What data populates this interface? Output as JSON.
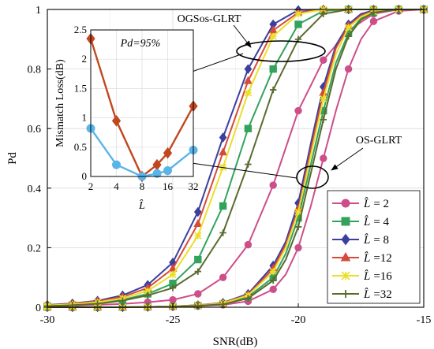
{
  "chart_data": {
    "type": "line",
    "xlabel": "SNR(dB)",
    "ylabel": "Pd",
    "xlim": [
      -30,
      -15
    ],
    "ylim": [
      0,
      1
    ],
    "xticks": [
      -30,
      -25,
      -20,
      -15
    ],
    "yticks": [
      0,
      0.2,
      0.4,
      0.6,
      0.8,
      1
    ],
    "xtick_labels": [
      "-30",
      "-25",
      "-20",
      "-15"
    ],
    "ytick_labels": [
      "0",
      "0.2",
      "0.4",
      "0.6",
      "0.8",
      "1"
    ],
    "grid": true,
    "legend_position": "bottom-right",
    "series": [
      {
        "name": "L̂ = 2",
        "label_var": "L̂",
        "label_val": "= 2",
        "color": "#cc4f8a",
        "marker": "circle",
        "ogs_x": [
          -30,
          -29,
          -28,
          -27,
          -26,
          -25,
          -24,
          -23,
          -22,
          -21,
          -20,
          -19,
          -18,
          -17,
          -16,
          -15
        ],
        "ogs_y": [
          0.003,
          0.005,
          0.008,
          0.011,
          0.017,
          0.025,
          0.045,
          0.1,
          0.21,
          0.41,
          0.66,
          0.83,
          0.93,
          0.985,
          1,
          1
        ],
        "os_x": [
          -30,
          -29,
          -28,
          -27,
          -26,
          -25,
          -24,
          -23,
          -22,
          -21,
          -20.5,
          -20,
          -19.5,
          -19,
          -18.5,
          -18,
          -17.5,
          -17,
          -16,
          -15
        ],
        "os_y": [
          0,
          0,
          0,
          0,
          0.001,
          0.002,
          0.004,
          0.008,
          0.02,
          0.06,
          0.11,
          0.2,
          0.34,
          0.5,
          0.66,
          0.8,
          0.9,
          0.96,
          0.995,
          1
        ]
      },
      {
        "name": "L̂ = 4",
        "label_var": "L̂",
        "label_val": "= 4",
        "color": "#33a35c",
        "marker": "square",
        "ogs_x": [
          -30,
          -29,
          -28,
          -27,
          -26,
          -25,
          -24,
          -23,
          -22,
          -21,
          -20,
          -19,
          -18,
          -17,
          -16,
          -15
        ],
        "ogs_y": [
          0.005,
          0.008,
          0.014,
          0.025,
          0.045,
          0.08,
          0.16,
          0.34,
          0.6,
          0.8,
          0.95,
          0.995,
          1,
          1,
          1,
          1
        ],
        "os_x": [
          -30,
          -29,
          -28,
          -27,
          -26,
          -25,
          -24,
          -23,
          -22,
          -21,
          -20.5,
          -20,
          -19.5,
          -19,
          -18.5,
          -18,
          -17.5,
          -17,
          -16,
          -15
        ],
        "os_y": [
          0,
          0,
          0,
          0,
          0.001,
          0.003,
          0.006,
          0.012,
          0.035,
          0.1,
          0.18,
          0.3,
          0.48,
          0.66,
          0.82,
          0.92,
          0.97,
          0.99,
          1,
          1
        ]
      },
      {
        "name": "L̂ = 8",
        "label_var": "L̂",
        "label_val": "= 8",
        "color": "#3a3fa0",
        "marker": "diamond",
        "ogs_x": [
          -30,
          -29,
          -28,
          -27,
          -26,
          -25,
          -24,
          -23,
          -22,
          -21,
          -20,
          -19,
          -18,
          -17,
          -16,
          -15
        ],
        "ogs_y": [
          0.008,
          0.013,
          0.022,
          0.04,
          0.075,
          0.15,
          0.32,
          0.57,
          0.8,
          0.95,
          0.998,
          1,
          1,
          1,
          1,
          1
        ],
        "os_x": [
          -30,
          -29,
          -28,
          -27,
          -26,
          -25,
          -24,
          -23,
          -22,
          -21,
          -20.5,
          -20,
          -19.5,
          -19,
          -18.5,
          -18,
          -17.5,
          -17,
          -16,
          -15
        ],
        "os_y": [
          0,
          0,
          0,
          0,
          0.001,
          0.003,
          0.007,
          0.015,
          0.045,
          0.14,
          0.22,
          0.35,
          0.55,
          0.74,
          0.88,
          0.95,
          0.985,
          0.997,
          1,
          1
        ]
      },
      {
        "name": "L̂ =12",
        "label_var": "L̂",
        "label_val": "=12",
        "color": "#d64a3a",
        "marker": "triangle",
        "ogs_x": [
          -30,
          -29,
          -28,
          -27,
          -26,
          -25,
          -24,
          -23,
          -22,
          -21,
          -20,
          -19,
          -18,
          -17,
          -16,
          -15
        ],
        "ogs_y": [
          0.007,
          0.012,
          0.02,
          0.035,
          0.065,
          0.13,
          0.28,
          0.52,
          0.76,
          0.93,
          0.99,
          1,
          1,
          1,
          1,
          1
        ],
        "os_x": [
          -30,
          -29,
          -28,
          -27,
          -26,
          -25,
          -24,
          -23,
          -22,
          -21,
          -20.5,
          -20,
          -19.5,
          -19,
          -18.5,
          -18,
          -17.5,
          -17,
          -16,
          -15
        ],
        "os_y": [
          0,
          0,
          0,
          0,
          0.001,
          0.003,
          0.007,
          0.014,
          0.042,
          0.13,
          0.21,
          0.33,
          0.53,
          0.72,
          0.87,
          0.945,
          0.98,
          0.995,
          1,
          1
        ]
      },
      {
        "name": "L̂ =16",
        "label_var": "L̂",
        "label_val": "=16",
        "color": "#eadf2a",
        "marker": "cross",
        "ogs_x": [
          -30,
          -29,
          -28,
          -27,
          -26,
          -25,
          -24,
          -23,
          -22,
          -21,
          -20,
          -19,
          -18,
          -17,
          -16,
          -15
        ],
        "ogs_y": [
          0.006,
          0.01,
          0.017,
          0.03,
          0.055,
          0.11,
          0.24,
          0.47,
          0.72,
          0.91,
          0.985,
          1,
          1,
          1,
          1,
          1
        ],
        "os_x": [
          -30,
          -29,
          -28,
          -27,
          -26,
          -25,
          -24,
          -23,
          -22,
          -21,
          -20.5,
          -20,
          -19.5,
          -19,
          -18.5,
          -18,
          -17.5,
          -17,
          -16,
          -15
        ],
        "os_y": [
          0,
          0,
          0,
          0,
          0.001,
          0.003,
          0.006,
          0.013,
          0.04,
          0.12,
          0.2,
          0.32,
          0.51,
          0.7,
          0.85,
          0.94,
          0.975,
          0.993,
          1,
          1
        ]
      },
      {
        "name": "L̂ =32",
        "label_var": "L̂",
        "label_val": "=32",
        "color": "#5a6b2e",
        "marker": "plus",
        "ogs_x": [
          -30,
          -29,
          -28,
          -27,
          -26,
          -25,
          -24,
          -23,
          -22,
          -21,
          -20,
          -19,
          -18,
          -17,
          -16,
          -15
        ],
        "ogs_y": [
          0.004,
          0.007,
          0.012,
          0.022,
          0.04,
          0.065,
          0.12,
          0.25,
          0.48,
          0.73,
          0.9,
          0.985,
          1,
          1,
          1,
          1
        ],
        "os_x": [
          -30,
          -29,
          -28,
          -27,
          -26,
          -25,
          -24,
          -23,
          -22,
          -21,
          -20.5,
          -20,
          -19.5,
          -19,
          -18.5,
          -18,
          -17.5,
          -17,
          -16,
          -15
        ],
        "os_y": [
          0,
          0,
          0,
          0,
          0.001,
          0.002,
          0.005,
          0.01,
          0.03,
          0.09,
          0.16,
          0.27,
          0.45,
          0.63,
          0.8,
          0.91,
          0.965,
          0.99,
          1,
          1
        ]
      }
    ],
    "annotations": {
      "ogs_label": "OGSos-GLRT",
      "os_label": "OS-GLRT"
    },
    "inset": {
      "type": "line",
      "title": "Pd=95%",
      "ylabel": "Mismatch Loss(dB)",
      "xlabel": "L̂",
      "xtick_labels": [
        "2",
        "4",
        "8",
        "16",
        "32"
      ],
      "ytick_labels": [
        "0",
        "0.5",
        "1",
        "1.5",
        "2",
        "2.5"
      ],
      "ylim": [
        0,
        2.5
      ],
      "grid": true,
      "series": [
        {
          "name": "OGSos-GLRT",
          "color": "#c1471f",
          "marker": "diamond",
          "x": [
            2,
            4,
            8,
            12,
            16,
            32
          ],
          "y": [
            2.35,
            0.95,
            0.0,
            0.2,
            0.4,
            1.2
          ]
        },
        {
          "name": "OS-GLRT",
          "color": "#5ab4e8",
          "marker": "circle",
          "x": [
            2,
            4,
            8,
            12,
            16,
            32
          ],
          "y": [
            0.82,
            0.2,
            0.0,
            0.05,
            0.1,
            0.45
          ]
        }
      ]
    }
  }
}
